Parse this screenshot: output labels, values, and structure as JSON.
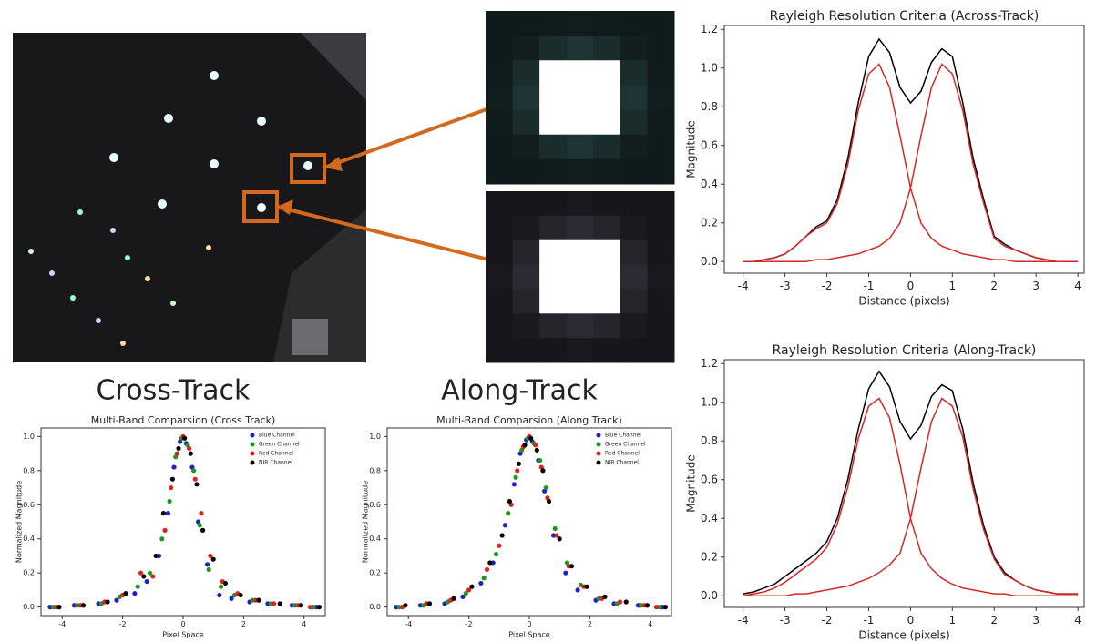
{
  "section_labels": [
    "Cross-Track",
    "Along-Track"
  ],
  "chart_data": [
    {
      "type": "line",
      "title": "Rayleigh Resolution Criteria (Across-Track)",
      "x_label": "Distance (pixels)",
      "y_label": "Magnitude",
      "x": [
        -4,
        -3.75,
        -3.5,
        -3.25,
        -3,
        -2.75,
        -2.5,
        -2.25,
        -2,
        -1.75,
        -1.5,
        -1.25,
        -1,
        -0.75,
        -0.5,
        -0.25,
        0,
        0.25,
        0.5,
        0.75,
        1,
        1.25,
        1.5,
        1.75,
        2,
        2.25,
        2.5,
        2.75,
        3,
        3.25,
        3.5,
        3.75,
        4
      ],
      "series": [
        {
          "color": "#000000",
          "values": [
            0,
            0,
            0.01,
            0.02,
            0.04,
            0.08,
            0.13,
            0.18,
            0.21,
            0.32,
            0.53,
            0.82,
            1.06,
            1.15,
            1.08,
            0.9,
            0.82,
            0.88,
            1.03,
            1.1,
            1.06,
            0.82,
            0.53,
            0.32,
            0.13,
            0.09,
            0.06,
            0.04,
            0.02,
            0.01,
            0,
            0,
            0
          ]
        },
        {
          "color": "#d62728",
          "values": [
            0,
            0,
            0.01,
            0.02,
            0.04,
            0.08,
            0.13,
            0.17,
            0.2,
            0.3,
            0.5,
            0.78,
            0.97,
            1.02,
            0.9,
            0.65,
            0.38,
            0.2,
            0.12,
            0.08,
            0.06,
            0.04,
            0.03,
            0.02,
            0.01,
            0.01,
            0,
            0,
            0,
            0,
            0,
            0,
            0
          ]
        },
        {
          "color": "#d62728",
          "values": [
            0,
            0,
            0,
            0,
            0,
            0,
            0,
            0.01,
            0.01,
            0.02,
            0.03,
            0.04,
            0.06,
            0.08,
            0.12,
            0.2,
            0.38,
            0.65,
            0.9,
            1.02,
            0.97,
            0.78,
            0.5,
            0.3,
            0.12,
            0.08,
            0.06,
            0.04,
            0.02,
            0.01,
            0,
            0,
            0
          ]
        }
      ],
      "xlim": [
        -4.45,
        4.15
      ],
      "ylim": [
        -0.06,
        1.22
      ],
      "xticks": [
        -4,
        -3,
        -2,
        -1,
        0,
        1,
        2,
        3,
        4
      ],
      "yticks": [
        {
          "value": 0,
          "label": "0.0"
        },
        0.2,
        0.4,
        0.6,
        0.8,
        {
          "value": 1,
          "label": "1.0"
        },
        1.2
      ]
    },
    {
      "type": "line",
      "title": "Rayleigh Resolution Criteria (Along-Track)",
      "x_label": "Distance (pixels)",
      "y_label": "Magnitude",
      "x": [
        -4,
        -3.75,
        -3.5,
        -3.25,
        -3,
        -2.75,
        -2.5,
        -2.25,
        -2,
        -1.75,
        -1.5,
        -1.25,
        -1,
        -0.75,
        -0.5,
        -0.25,
        0,
        0.25,
        0.5,
        0.75,
        1,
        1.25,
        1.5,
        1.75,
        2,
        2.25,
        2.5,
        2.75,
        3,
        3.25,
        3.5,
        3.75,
        4
      ],
      "series": [
        {
          "color": "#000000",
          "values": [
            0.01,
            0.02,
            0.04,
            0.06,
            0.1,
            0.14,
            0.18,
            0.22,
            0.28,
            0.4,
            0.6,
            0.86,
            1.07,
            1.16,
            1.08,
            0.9,
            0.81,
            0.88,
            1.03,
            1.09,
            1.06,
            0.86,
            0.58,
            0.36,
            0.2,
            0.12,
            0.08,
            0.05,
            0.03,
            0.02,
            0.01,
            0.01,
            0.01
          ]
        },
        {
          "color": "#d62728",
          "values": [
            0,
            0.01,
            0.02,
            0.04,
            0.07,
            0.11,
            0.15,
            0.19,
            0.25,
            0.37,
            0.56,
            0.81,
            0.98,
            1.02,
            0.92,
            0.68,
            0.4,
            0.22,
            0.14,
            0.09,
            0.06,
            0.04,
            0.03,
            0.02,
            0.01,
            0.01,
            0,
            0,
            0,
            0,
            0,
            0,
            0
          ]
        },
        {
          "color": "#d62728",
          "values": [
            0,
            0,
            0,
            0,
            0,
            0.01,
            0.01,
            0.02,
            0.03,
            0.04,
            0.05,
            0.07,
            0.09,
            0.12,
            0.16,
            0.22,
            0.4,
            0.66,
            0.9,
            1.02,
            0.98,
            0.82,
            0.55,
            0.34,
            0.19,
            0.11,
            0.08,
            0.05,
            0.03,
            0.02,
            0.01,
            0.01,
            0.01
          ]
        }
      ],
      "xlim": [
        -4.45,
        4.15
      ],
      "ylim": [
        -0.06,
        1.22
      ],
      "xticks": [
        -4,
        -3,
        -2,
        -1,
        0,
        1,
        2,
        3,
        4
      ],
      "yticks": [
        {
          "value": 0,
          "label": "0.0"
        },
        0.2,
        0.4,
        0.6,
        0.8,
        {
          "value": 1,
          "label": "1.0"
        },
        1.2
      ]
    },
    {
      "type": "scatter",
      "title": "Multi-Band Comparsion (Cross Track)",
      "x_label": "Pixel Space",
      "y_label": "Normalized Magnitude",
      "series": [
        {
          "name": "Blue Channel",
          "color": "#1f1fd0",
          "x": [
            -4.4,
            -3.6,
            -2.8,
            -2.2,
            -1.6,
            -1.2,
            -0.8,
            -0.5,
            -0.3,
            -0.1,
            0.1,
            0.3,
            0.5,
            0.8,
            1.2,
            1.6,
            2.2,
            2.8,
            3.6,
            4.4
          ],
          "values": [
            0,
            0.01,
            0.02,
            0.04,
            0.08,
            0.15,
            0.3,
            0.55,
            0.82,
            0.97,
            0.96,
            0.82,
            0.5,
            0.25,
            0.07,
            0.05,
            0.03,
            0.02,
            0.01,
            0
          ]
        },
        {
          "name": "Green Channel",
          "color": "#1a9a1a",
          "x": [
            -4.3,
            -3.5,
            -2.7,
            -2.1,
            -1.5,
            -1.1,
            -0.7,
            -0.45,
            -0.25,
            -0.05,
            0.15,
            0.35,
            0.55,
            0.85,
            1.25,
            1.7,
            2.3,
            2.9,
            3.7,
            4.3
          ],
          "values": [
            0,
            0.01,
            0.02,
            0.06,
            0.12,
            0.2,
            0.4,
            0.62,
            0.88,
            0.99,
            0.95,
            0.8,
            0.48,
            0.22,
            0.12,
            0.07,
            0.04,
            0.02,
            0.01,
            0
          ]
        },
        {
          "name": "Red Channel",
          "color": "#e02020",
          "x": [
            -4.2,
            -3.4,
            -2.6,
            -2.0,
            -1.4,
            -1.0,
            -0.6,
            -0.4,
            -0.2,
            0.0,
            0.2,
            0.4,
            0.6,
            0.9,
            1.3,
            1.8,
            2.4,
            3.0,
            3.8,
            4.2
          ],
          "values": [
            0,
            0.01,
            0.03,
            0.07,
            0.2,
            0.18,
            0.45,
            0.7,
            0.9,
            1.0,
            0.93,
            0.75,
            0.55,
            0.3,
            0.15,
            0.08,
            0.04,
            0.02,
            0.01,
            0
          ]
        },
        {
          "name": "NIR Channel",
          "color": "#000000",
          "x": [
            -4.1,
            -3.3,
            -2.5,
            -1.9,
            -1.3,
            -0.9,
            -0.65,
            -0.35,
            -0.15,
            0.05,
            0.25,
            0.45,
            0.65,
            1.0,
            1.4,
            1.9,
            2.5,
            3.2,
            3.9,
            4.5
          ],
          "values": [
            0,
            0.01,
            0.03,
            0.08,
            0.18,
            0.3,
            0.55,
            0.75,
            0.93,
            0.99,
            0.9,
            0.72,
            0.45,
            0.28,
            0.14,
            0.07,
            0.04,
            0.02,
            0.01,
            0
          ]
        }
      ],
      "legend": "upper right",
      "xlim": [
        -4.7,
        4.7
      ],
      "ylim": [
        -0.05,
        1.05
      ],
      "xticks": [
        -4,
        -2,
        0,
        2,
        4
      ],
      "yticks": [
        {
          "value": 0,
          "label": "0.0"
        },
        0.2,
        0.4,
        0.6,
        0.8,
        {
          "value": 1,
          "label": "1.0"
        }
      ]
    },
    {
      "type": "scatter",
      "title": "Multi-Band Comparsion (Along Track)",
      "x_label": "Pixel Space",
      "y_label": "Normalized Magnitude",
      "series": [
        {
          "name": "Blue Channel",
          "color": "#1f1fd0",
          "x": [
            -4.4,
            -3.6,
            -2.8,
            -2.2,
            -1.6,
            -1.2,
            -0.8,
            -0.5,
            -0.3,
            -0.1,
            0.1,
            0.3,
            0.5,
            0.8,
            1.2,
            1.6,
            2.2,
            2.8,
            3.6,
            4.4
          ],
          "values": [
            0,
            0.01,
            0.02,
            0.06,
            0.14,
            0.26,
            0.48,
            0.72,
            0.9,
            0.98,
            0.97,
            0.86,
            0.68,
            0.42,
            0.2,
            0.1,
            0.04,
            0.02,
            0.01,
            0
          ]
        },
        {
          "name": "Green Channel",
          "color": "#1a9a1a",
          "x": [
            -4.3,
            -3.5,
            -2.7,
            -2.1,
            -1.5,
            -1.1,
            -0.7,
            -0.45,
            -0.25,
            -0.05,
            0.15,
            0.35,
            0.55,
            0.85,
            1.25,
            1.7,
            2.3,
            2.9,
            3.7,
            4.3
          ],
          "values": [
            0,
            0.01,
            0.03,
            0.08,
            0.17,
            0.31,
            0.55,
            0.76,
            0.92,
            0.99,
            0.96,
            0.86,
            0.7,
            0.46,
            0.26,
            0.13,
            0.05,
            0.02,
            0.01,
            0
          ]
        },
        {
          "name": "Red Channel",
          "color": "#e02020",
          "x": [
            -4.2,
            -3.4,
            -2.6,
            -2.0,
            -1.4,
            -1.0,
            -0.6,
            -0.4,
            -0.2,
            0.0,
            0.2,
            0.4,
            0.6,
            0.9,
            1.3,
            1.8,
            2.4,
            3.0,
            3.8,
            4.2
          ],
          "values": [
            0,
            0.02,
            0.04,
            0.1,
            0.22,
            0.36,
            0.6,
            0.8,
            0.94,
            1.0,
            0.95,
            0.82,
            0.64,
            0.42,
            0.24,
            0.12,
            0.05,
            0.03,
            0.01,
            0
          ]
        },
        {
          "name": "NIR Channel",
          "color": "#000000",
          "x": [
            -4.1,
            -3.3,
            -2.5,
            -1.9,
            -1.3,
            -0.9,
            -0.65,
            -0.35,
            -0.15,
            0.05,
            0.25,
            0.45,
            0.65,
            1.0,
            1.4,
            1.9,
            2.5,
            3.2,
            3.9,
            4.5
          ],
          "values": [
            0.01,
            0.02,
            0.05,
            0.12,
            0.26,
            0.42,
            0.62,
            0.84,
            0.95,
            0.99,
            0.92,
            0.8,
            0.62,
            0.4,
            0.24,
            0.12,
            0.06,
            0.03,
            0.01,
            0
          ]
        }
      ],
      "legend": "upper right",
      "xlim": [
        -4.7,
        4.7
      ],
      "ylim": [
        -0.05,
        1.05
      ],
      "xticks": [
        -4,
        -2,
        0,
        2,
        4
      ],
      "yticks": [
        {
          "value": 0,
          "label": "0.0"
        },
        0.2,
        0.4,
        0.6,
        0.8,
        {
          "value": 1,
          "label": "1.0"
        }
      ]
    }
  ]
}
